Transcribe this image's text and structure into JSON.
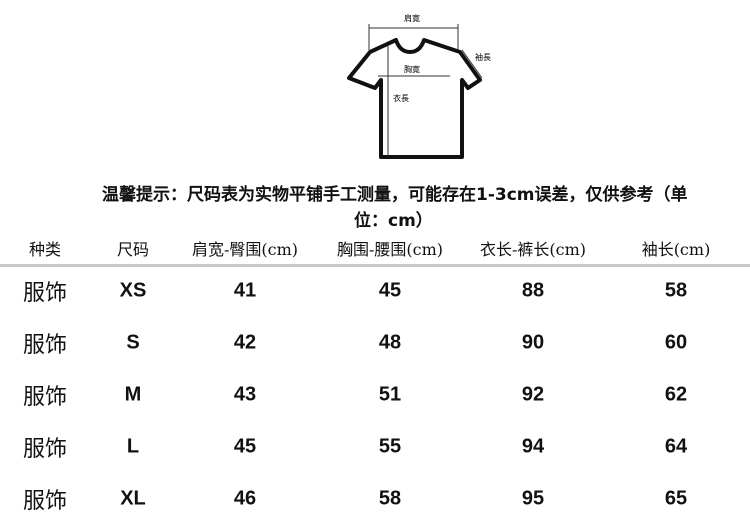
{
  "diagram": {
    "labels": {
      "shoulder": "肩寛",
      "chest": "胸寛",
      "sleeve": "袖長",
      "length": "衣長"
    }
  },
  "notice": {
    "line1": "温馨提示：尺码表为实物平铺手工测量，可能存在1-3cm误差，仅供参考（单",
    "line2": "位：cm）"
  },
  "table": {
    "headers": [
      "种类",
      "尺码",
      "肩宽-臀围(cm)",
      "胸围-腰围(cm)",
      "衣长-裤长(cm)",
      "袖长(cm)"
    ],
    "rows": [
      [
        "服饰",
        "XS",
        "41",
        "45",
        "88",
        "58"
      ],
      [
        "服饰",
        "S",
        "42",
        "48",
        "90",
        "60"
      ],
      [
        "服饰",
        "M",
        "43",
        "51",
        "92",
        "62"
      ],
      [
        "服饰",
        "L",
        "45",
        "55",
        "94",
        "64"
      ],
      [
        "服饰",
        "XL",
        "46",
        "58",
        "95",
        "65"
      ]
    ]
  }
}
